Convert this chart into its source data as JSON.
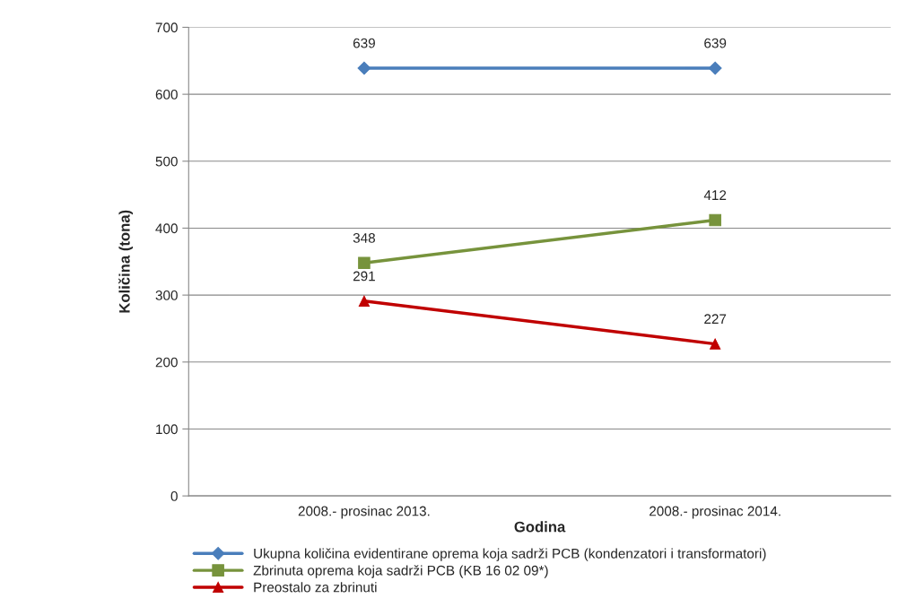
{
  "chart_data": {
    "type": "line",
    "xlabel": "Godina",
    "ylabel": "Količina (tona)",
    "categories": [
      "2008.- prosinac 2013.",
      "2008.- prosinac 2014."
    ],
    "series": [
      {
        "name": "Ukupna količina evidentirane oprema koja sadrži PCB (kondenzatori i transformatori)",
        "color": "#4a7ebb",
        "values": [
          639,
          639
        ],
        "marker": "diamond"
      },
      {
        "name": "Zbrinuta oprema koja sadrži PCB (KB 16 02 09*)",
        "color": "#77933c",
        "values": [
          348,
          412
        ],
        "marker": "square"
      },
      {
        "name": "Preostalo za zbrinuti",
        "color": "#c00000",
        "values": [
          291,
          227
        ],
        "marker": "triangle"
      }
    ],
    "ylim": [
      0,
      700
    ],
    "yticks": [
      0,
      100,
      200,
      300,
      400,
      500,
      600,
      700
    ],
    "grid": "y",
    "legend": "bottom",
    "data_labels": true,
    "line_style": "solid"
  }
}
